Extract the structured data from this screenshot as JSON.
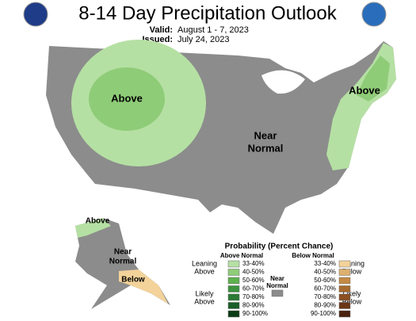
{
  "header": {
    "title": "8-14 Day Precipitation Outlook",
    "valid_label": "Valid:",
    "valid": "August 1 - 7, 2023",
    "issued_label": "Issued:",
    "issued": "July 24, 2023"
  },
  "map_labels": {
    "west": "Above",
    "center": [
      "Near",
      "Normal"
    ],
    "east": "Above",
    "alaska_above": "Above",
    "alaska_near": [
      "Near",
      "Normal"
    ],
    "alaska_below": "Below"
  },
  "legend": {
    "title": "Probability (Percent Chance)",
    "above_heading": "Above Normal",
    "below_heading": "Below Normal",
    "near_label": [
      "Near",
      "Normal"
    ],
    "near_color": "#8c8c8c",
    "leaning_above": [
      "Leaning",
      "Above"
    ],
    "likely_above": [
      "Likely",
      "Above"
    ],
    "leaning_below": [
      "Leaning",
      "Below"
    ],
    "likely_below": [
      "Likely",
      "Below"
    ],
    "above": [
      {
        "range": "33-40%",
        "color": "#b5e0a3"
      },
      {
        "range": "40-50%",
        "color": "#8fcc78"
      },
      {
        "range": "50-60%",
        "color": "#5fb14e"
      },
      {
        "range": "60-70%",
        "color": "#3d9340"
      },
      {
        "range": "70-80%",
        "color": "#2a7a35"
      },
      {
        "range": "80-90%",
        "color": "#1a5e28"
      },
      {
        "range": "90-100%",
        "color": "#0c3d16"
      }
    ],
    "below": [
      {
        "range": "33-40%",
        "color": "#f3d39a"
      },
      {
        "range": "40-50%",
        "color": "#ddb06e"
      },
      {
        "range": "50-60%",
        "color": "#c48a45"
      },
      {
        "range": "60-70%",
        "color": "#a86a2e"
      },
      {
        "range": "70-80%",
        "color": "#8c4f22"
      },
      {
        "range": "80-90%",
        "color": "#6b3717"
      },
      {
        "range": "90-100%",
        "color": "#4a220e"
      }
    ]
  }
}
